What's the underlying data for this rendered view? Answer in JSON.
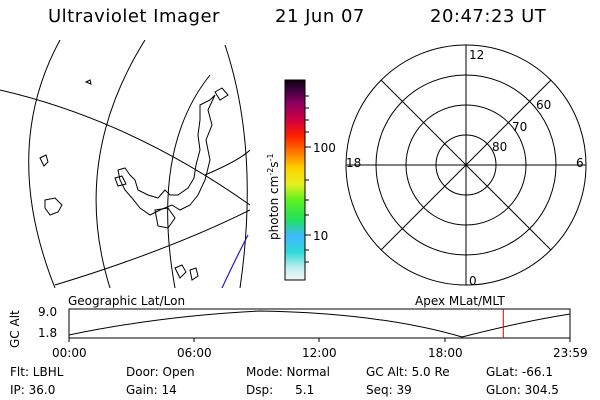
{
  "header": {
    "instrument": "Ultraviolet Imager",
    "date": "21 Jun 07",
    "time": "20:47:23 UT"
  },
  "colorbar": {
    "label": "photon cm",
    "label_exp": "-2",
    "label_s": "s",
    "label_s_exp": "-1",
    "tick_100": "100",
    "tick_10": "10"
  },
  "polar": {
    "mlt_top": "12",
    "mlt_left": "18",
    "mlt_right": "6",
    "mlt_bottom": "0",
    "lat_60": "60",
    "lat_70": "70",
    "lat_80": "80"
  },
  "panel_labels": {
    "geographic": "Geographic Lat/Lon",
    "apex": "Apex MLat/MLT"
  },
  "altitude_plot": {
    "ylabel": "GC Alt",
    "ymax": "9.0",
    "ymin": "1.8",
    "x_ticks": [
      "00:00",
      "06:00",
      "12:00",
      "18:00",
      "23:59"
    ],
    "current_time_marker_hour": 20.79
  },
  "status": {
    "flt": "Flt: LBHL",
    "ip": "IP: 36.0",
    "door": "Door: Open",
    "gain": "Gain: 14",
    "mode": "Mode: Normal",
    "dsp_label": "Dsp:",
    "dsp_value": "5.1",
    "gc_alt": "GC Alt: 5.0 Re",
    "seq": "Seq: 39",
    "glat": "GLat: -66.1",
    "glon": "GLon: 304.5"
  },
  "colors": {
    "marker": "#e00000",
    "map_line": "#000000"
  }
}
